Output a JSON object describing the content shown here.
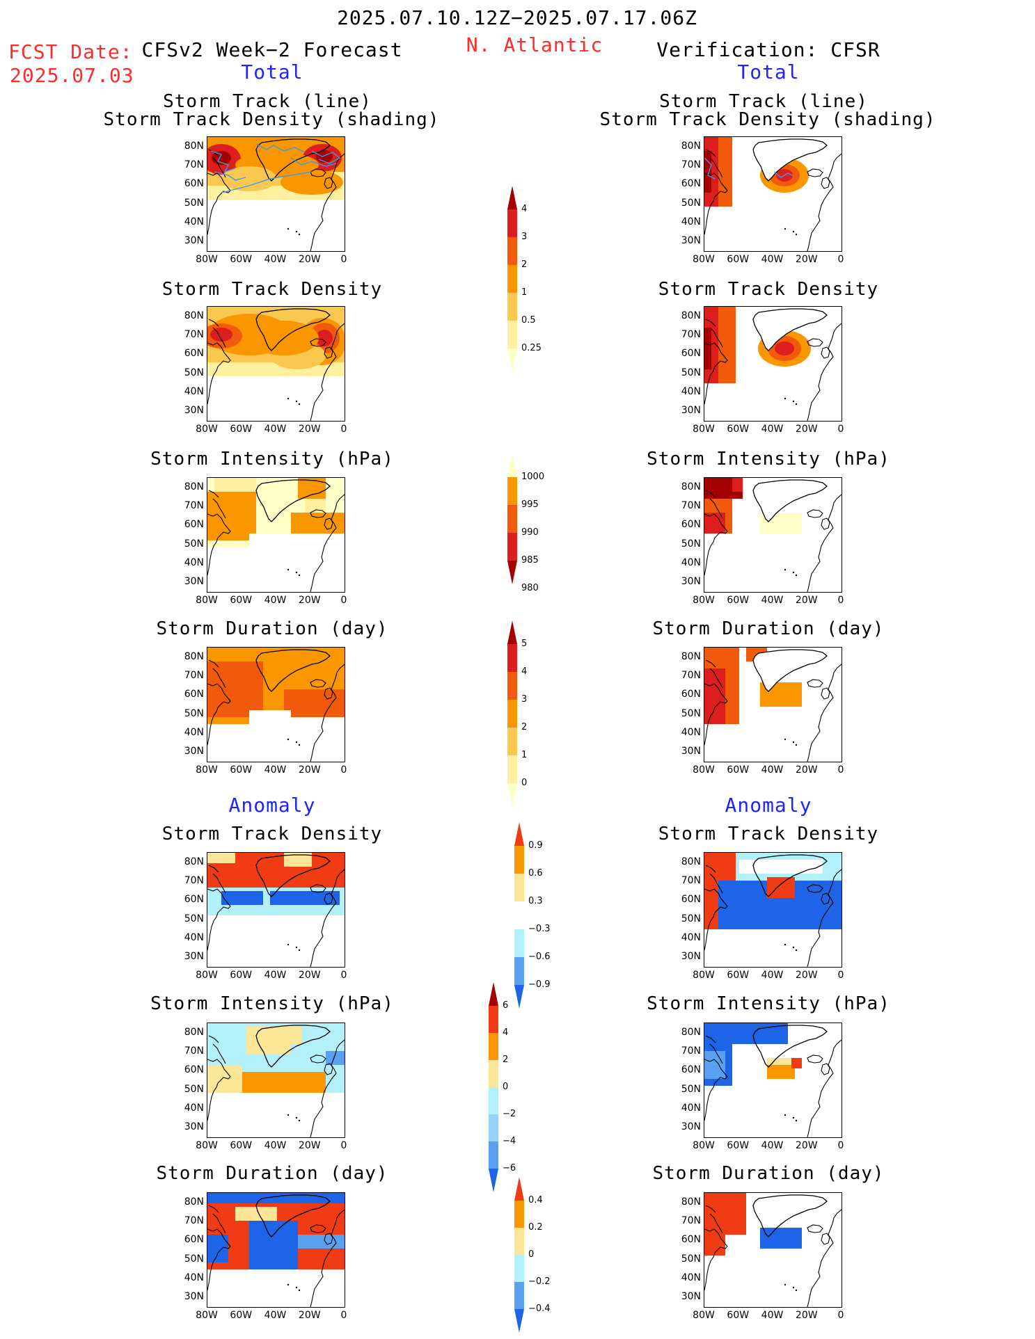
{
  "header": {
    "period": "2025.07.10.12Z−2025.07.17.06Z",
    "fcst_label": "FCST Date:",
    "fcst_date": "2025.07.03",
    "forecast_title": "CFSv2 Week−2 Forecast",
    "region": "N. Atlantic",
    "verification_title": "Verification: CFSR",
    "left_total": "Total",
    "right_total": "Total",
    "left_anomaly": "Anomaly",
    "right_anomaly": "Anomaly"
  },
  "panel_titles": {
    "track_line": "Storm Track (line)",
    "track_shading": "Storm Track Density (shading)",
    "density": "Storm Track Density",
    "intensity": "Storm Intensity (hPa)",
    "duration": "Storm Duration (day)"
  },
  "axes": {
    "lat_labels": [
      "80N",
      "70N",
      "60N",
      "50N",
      "40N",
      "30N"
    ],
    "lon_labels_left": [
      "80W",
      "60W",
      "40W",
      "20W",
      "0"
    ],
    "lon_labels_right": [
      "80W",
      "60W",
      "40W",
      "20W",
      "0"
    ],
    "lat_range": [
      25,
      85
    ],
    "lon_range": [
      -80,
      0
    ]
  },
  "colorbars": {
    "density": {
      "labels": [
        "4",
        "3",
        "2",
        "1",
        "0.5",
        "0.25"
      ],
      "colors": [
        "#a50000",
        "#dc1e1e",
        "#f05a0a",
        "#fa9600",
        "#fac850",
        "#fff0a0",
        "#ffffc8"
      ]
    },
    "intensity": {
      "labels": [
        "1000",
        "995",
        "990",
        "985",
        "980"
      ],
      "colors": [
        "#ffffc8",
        "#fa9600",
        "#f05a0a",
        "#dc1e1e",
        "#a50000"
      ]
    },
    "duration": {
      "labels": [
        "5",
        "4",
        "3",
        "2",
        "1",
        "0"
      ],
      "colors": [
        "#a50000",
        "#dc1e1e",
        "#f05a0a",
        "#fa9600",
        "#fac850",
        "#fff0a0",
        "#ffffc8"
      ]
    },
    "anom_density": {
      "labels": [
        "0.9",
        "0.6",
        "0.3",
        "−0.3",
        "−0.6",
        "−0.9"
      ],
      "colors": [
        "#f03c14",
        "#fa9600",
        "#fae696",
        "#ffffff",
        "#b4f0fa",
        "#5aa0f0",
        "#1e64e6"
      ]
    },
    "anom_intensity": {
      "labels": [
        "6",
        "4",
        "2",
        "0",
        "−2",
        "−4",
        "−6"
      ],
      "colors": [
        "#a50000",
        "#f03c14",
        "#fa9600",
        "#fae696",
        "#b4f0fa",
        "#96d2fa",
        "#5aa0f0",
        "#1e64e6"
      ]
    },
    "anom_duration": {
      "labels": [
        "0.4",
        "0.2",
        "0",
        "−0.2",
        "−0.4"
      ],
      "colors": [
        "#f03c14",
        "#fa9600",
        "#fae696",
        "#b4f0fa",
        "#5aa0f0",
        "#1e64e6"
      ]
    }
  }
}
